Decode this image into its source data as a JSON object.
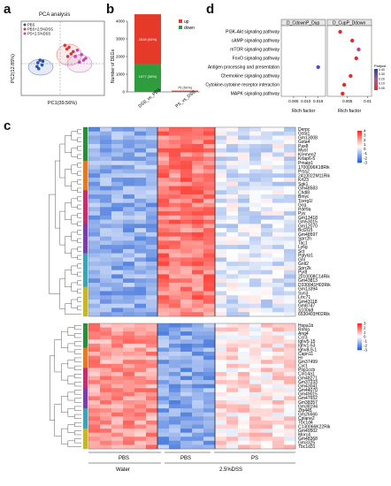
{
  "panel_labels": {
    "a": "a",
    "b": "b",
    "c": "c",
    "d": "d"
  },
  "panel_a": {
    "title": "PCA analysis",
    "xlabel": "PC1(39.56%)",
    "ylabel": "PC2(12.85%)",
    "legend": [
      {
        "label": "PBS",
        "color": "#2c4fb0"
      },
      {
        "label": "PBS+2.5%DSS",
        "color": "#d43a3a"
      },
      {
        "label": "PS+2.5%DSS",
        "color": "#c940b8"
      }
    ]
  },
  "chart_data": [
    {
      "type": "scatter",
      "title": "PCA analysis",
      "xlabel": "PC1(39.56%)",
      "ylabel": "PC2(12.85%)",
      "series": [
        {
          "name": "PBS",
          "color": "#2c4fb0",
          "points": [
            [
              -0.55,
              -0.05
            ],
            [
              -0.6,
              -0.12
            ],
            [
              -0.5,
              -0.18
            ],
            [
              -0.62,
              -0.22
            ],
            [
              -0.48,
              -0.08
            ],
            [
              -0.58,
              -0.28
            ]
          ]
        },
        {
          "name": "PBS+2.5%DSS",
          "color": "#d43a3a",
          "points": [
            [
              0.05,
              0.35
            ],
            [
              0.1,
              0.25
            ],
            [
              0.2,
              0.12
            ],
            [
              0.15,
              0.3
            ],
            [
              0.25,
              0.18
            ],
            [
              0.12,
              0.05
            ]
          ]
        },
        {
          "name": "PS+2.5%DSS",
          "color": "#c940b8",
          "points": [
            [
              0.3,
              0.05
            ],
            [
              0.4,
              -0.1
            ],
            [
              0.45,
              0.1
            ],
            [
              0.55,
              0.0
            ],
            [
              0.35,
              0.22
            ],
            [
              0.5,
              -0.05
            ]
          ]
        }
      ]
    },
    {
      "type": "bar",
      "ylabel": "Number of DEGs",
      "categories": [
        "DSS_vs_PBS",
        "PS_vs_DSS"
      ],
      "ylim": [
        0,
        4000
      ],
      "yticks": [
        "0",
        "1000",
        "2000",
        "3000",
        "4000"
      ],
      "series": [
        {
          "name": "up",
          "color": "#e53a2a",
          "values": [
            2818,
            21
          ]
        },
        {
          "name": "down",
          "color": "#2f9c3e",
          "values": [
            1577,
            54
          ]
        }
      ],
      "data_labels": [
        {
          "category": "DSS_vs_PBS",
          "series": "up",
          "text": "2818 (64%)"
        },
        {
          "category": "DSS_vs_PBS",
          "series": "down",
          "text": "1577 (36%)"
        },
        {
          "category": "PS_vs_DSS",
          "series": "total",
          "text": "75 (50%)"
        }
      ],
      "legend": [
        {
          "label": "up",
          "color": "#e53a2a"
        },
        {
          "label": "down",
          "color": "#2f9c3e"
        }
      ]
    },
    {
      "type": "scatter",
      "facets": [
        "D_CdownP_Dup",
        "D_CupP_Ddown"
      ],
      "xlabel": "Rich factor",
      "pathways": [
        "PI3K-Akt signaling pathway",
        "cAMP signaling pathway",
        "mTOR signaling pathway",
        "FoxO signaling pathway",
        "Antigen processing and presentation",
        "Chemokine signaling pathway",
        "Cytokine-cytokine receptor interaction",
        "MAPK signaling pathway"
      ],
      "facet_points": [
        {
          "facet": "D_CdownP_Dup",
          "xticks": [
            "0.005",
            "0.010",
            "0.015"
          ],
          "xlim": [
            0,
            0.018
          ],
          "points": [
            {
              "pathway": "Antigen processing and presentation",
              "x": 0.015,
              "padj": 0.4
            }
          ]
        },
        {
          "facet": "D_CupP_Ddown",
          "xticks": [
            "0.005",
            "0.01"
          ],
          "xlim": [
            0,
            0.011
          ],
          "points": [
            {
              "pathway": "PI3K-Akt signaling pathway",
              "x": 0.0032,
              "padj": 0.05
            },
            {
              "pathway": "cAMP signaling pathway",
              "x": 0.0062,
              "padj": 0.1
            },
            {
              "pathway": "mTOR signaling pathway",
              "x": 0.0078,
              "padj": 0.15
            },
            {
              "pathway": "FoxO signaling pathway",
              "x": 0.0072,
              "padj": 0.12
            },
            {
              "pathway": "Chemokine signaling pathway",
              "x": 0.0058,
              "padj": 0.1
            },
            {
              "pathway": "Cytokine-cytokine receptor interaction",
              "x": 0.0042,
              "padj": 0.08
            },
            {
              "pathway": "MAPK signaling pathway",
              "x": 0.0038,
              "padj": 0.06
            }
          ]
        }
      ],
      "legend_title": "Padjust",
      "legend_ticks": [
        "0.40",
        "0.30",
        "0.20",
        "0.10",
        "0.05"
      ]
    },
    {
      "type": "heatmap",
      "top_genes": [
        "Derpc",
        "Gsta1",
        "Gm13008",
        "Gsta4",
        "Pax8",
        "Myot",
        "Kremen2",
        "Krtap6-5",
        "Pmaip1",
        "1700096K18Rik",
        "Prss2",
        "2410022M11Rik",
        "Krt23",
        "Sgk1",
        "Gm48583",
        "Chdl8",
        "Bmyc",
        "Tcerg1l",
        "Gcg",
        "Pde9a",
        "Pyy",
        "Gm13418",
        "Gm53015",
        "Gm12070",
        "Bcl2l15",
        "Gm48597",
        "Sprr2h",
        "Tac1",
        "Ly6g",
        "Sct",
        "Pglyrp1",
        "Gnl",
        "Gnlt2",
        "Sprr2k",
        "Pyr8",
        "2010008C14Rik",
        "Gm43813",
        "D330041H03Rik",
        "Gm13394",
        "Syn3",
        "Lrrc71",
        "Gm43118",
        "Gm8747",
        "S100a8",
        "6530403H02Rik"
      ],
      "bottom_genes": [
        "Hspa1b",
        "Rnhla",
        "Ang4",
        "Ccr3",
        "Ighv5-15",
        "Ighv1-53",
        "Ighv8-9-1",
        "Capn11",
        "Hr",
        "Gm37499",
        "Cyct",
        "Psp1ccb",
        "Col14a1",
        "Gm48271",
        "Gm37233",
        "Gm43041",
        "Gm44070",
        "Gm49015",
        "Gm47652",
        "Gm38357",
        "Gm38194",
        "Zfp445",
        "Gm26566",
        "Cplane2",
        "Tbc1d4",
        "C130066K22Rik",
        "Gm49502",
        "Morc4",
        "Gm48368",
        "Gm3325",
        "Tbc1d31"
      ],
      "legend_top": [
        "4",
        "3",
        "2",
        "1",
        "0",
        "-1",
        "-2",
        "-3"
      ],
      "legend_bottom": [
        "3",
        "2",
        "1",
        "0",
        "-1",
        "-2",
        "-3"
      ],
      "group_labels": [
        "PBS",
        "PBS",
        "PS"
      ],
      "treatment_labels": [
        "Water",
        "2.5%DSS"
      ]
    }
  ],
  "panel_b": {
    "ylabel": "Number of DEGs",
    "yticks": [
      "0",
      "1000",
      "2000",
      "3000",
      "4000"
    ],
    "categories": [
      "DSS_vs_PBS",
      "PS_vs_DSS"
    ],
    "label_up": "2818 (64%)",
    "label_down": "1577 (36%)",
    "label_ps": "75 (50%)",
    "legend": [
      {
        "label": "up",
        "color": "#e53a2a"
      },
      {
        "label": "down",
        "color": "#2f9c3e"
      }
    ]
  },
  "panel_d": {
    "facet1": "D_CdownP_Dup",
    "facet2": "D_CupP_Ddown",
    "xlabel": "Rich factor",
    "legend_title": "Padjust",
    "legend_ticks": [
      "0.40",
      "0.30",
      "0.20",
      "0.10",
      "0.05"
    ]
  },
  "panel_c": {
    "group_labels": [
      "PBS",
      "PBS",
      "PS"
    ],
    "treatment_labels": [
      "Water",
      "2.5%DSS"
    ],
    "legend_top": [
      "4",
      "3",
      "2",
      "1",
      "0",
      "-1",
      "-2",
      "-3"
    ],
    "legend_bottom": [
      "3",
      "2",
      "1",
      "0",
      "-1",
      "-2",
      "-3"
    ]
  }
}
